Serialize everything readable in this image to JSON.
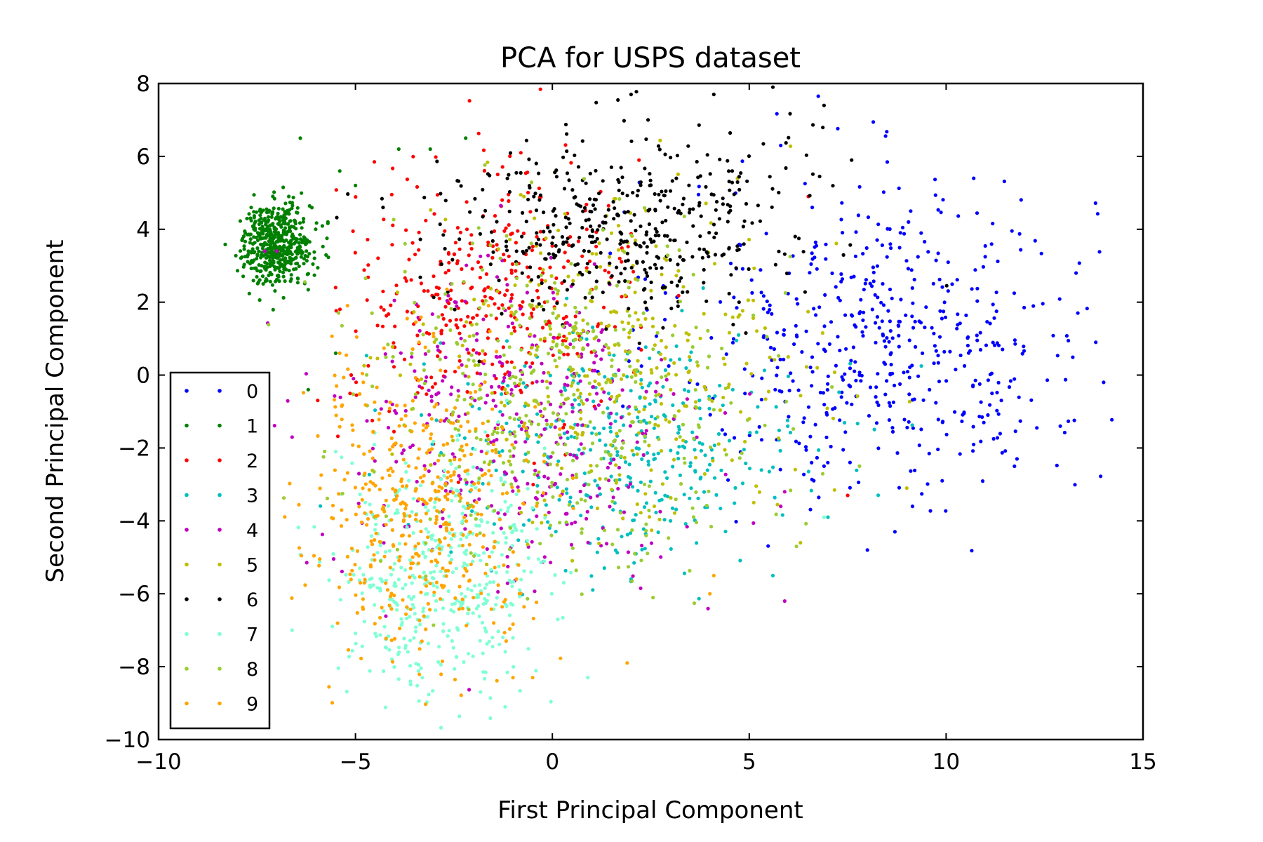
{
  "chart_data": {
    "type": "scatter",
    "title": "PCA for USPS dataset",
    "xlabel": "First Principal Component",
    "ylabel": "Second Principal Component",
    "xlim": [
      -10,
      15
    ],
    "ylim": [
      -10,
      8
    ],
    "xticks": [
      -10,
      -5,
      0,
      5,
      10,
      15
    ],
    "xtick_labels": [
      "−10",
      "−5",
      "0",
      "5",
      "10",
      "15"
    ],
    "yticks": [
      -10,
      -8,
      -6,
      -4,
      -2,
      0,
      2,
      4,
      6,
      8
    ],
    "ytick_labels": [
      "−10",
      "−8",
      "−6",
      "−4",
      "−2",
      "0",
      "2",
      "4",
      "6",
      "8"
    ],
    "grid": false,
    "legend_position": "lower-left",
    "series": [
      {
        "name": "0",
        "color": "#0000ff",
        "center": [
          8.5,
          1.0
        ],
        "spread": [
          2.6,
          2.2
        ],
        "count": 520,
        "points": [
          [
            5.8,
            6.3
          ],
          [
            10.7,
            5.4
          ],
          [
            13.8,
            0.9
          ],
          [
            14.0,
            -0.2
          ],
          [
            12.9,
            -1.4
          ],
          [
            11.8,
            -2.3
          ],
          [
            8.0,
            -4.8
          ],
          [
            8.7,
            -4.3
          ],
          [
            9.9,
            -2.9
          ],
          [
            13.3,
            2.8
          ],
          [
            9.1,
            4.5
          ],
          [
            6.6,
            4.6
          ]
        ]
      },
      {
        "name": "1",
        "color": "#008000",
        "center": [
          -7.0,
          3.6
        ],
        "spread": [
          0.45,
          0.55
        ],
        "count": 520,
        "points": [
          [
            -6.4,
            6.5
          ],
          [
            -5.4,
            5.6
          ],
          [
            -5.0,
            5.2
          ],
          [
            -3.9,
            6.2
          ],
          [
            -3.1,
            6.2
          ],
          [
            -2.2,
            6.5
          ],
          [
            -6.2,
            -0.4
          ],
          [
            -5.5,
            0.6
          ],
          [
            -7.8,
            3.9
          ],
          [
            -5.7,
            4.2
          ]
        ]
      },
      {
        "name": "2",
        "color": "#ff0000",
        "center": [
          -1.5,
          2.2
        ],
        "spread": [
          1.8,
          1.7
        ],
        "count": 360,
        "points": [
          [
            -0.8,
            6.1
          ],
          [
            6.5,
            4.9
          ],
          [
            7.5,
            -3.3
          ],
          [
            2.2,
            5.9
          ]
        ]
      },
      {
        "name": "3",
        "color": "#00bfbf",
        "center": [
          1.8,
          -2.0
        ],
        "spread": [
          2.4,
          1.6
        ],
        "count": 380,
        "points": [
          [
            5.6,
            -5.5
          ],
          [
            7.0,
            -3.9
          ],
          [
            3.0,
            -4.0
          ]
        ]
      },
      {
        "name": "4",
        "color": "#bf00bf",
        "center": [
          -1.0,
          -1.5
        ],
        "spread": [
          2.3,
          2.2
        ],
        "count": 380,
        "points": [
          [
            5.9,
            -3.2
          ],
          [
            5.8,
            -3.6
          ],
          [
            5.9,
            -6.2
          ],
          [
            -7.3,
            3.4
          ],
          [
            -7.0,
            3.4
          ]
        ]
      },
      {
        "name": "5",
        "color": "#bfbf00",
        "center": [
          1.5,
          0.2
        ],
        "spread": [
          2.4,
          2.2
        ],
        "count": 380,
        "points": [
          [
            9.0,
            -3.1
          ],
          [
            4.7,
            5.4
          ],
          [
            6.3,
            -4.6
          ]
        ]
      },
      {
        "name": "6",
        "color": "#000000",
        "center": [
          1.8,
          4.2
        ],
        "spread": [
          2.2,
          1.3
        ],
        "count": 440,
        "points": [
          [
            2.0,
            7.7
          ],
          [
            4.1,
            7.7
          ],
          [
            5.6,
            7.9
          ],
          [
            6.9,
            7.4
          ],
          [
            7.6,
            5.9
          ],
          [
            -4.3,
            4.6
          ]
        ]
      },
      {
        "name": "7",
        "color": "#7fffd4",
        "center": [
          -2.8,
          -5.5
        ],
        "spread": [
          1.3,
          1.6
        ],
        "count": 440,
        "points": [
          [
            -3.3,
            -8.3
          ],
          [
            -1.2,
            -9.1
          ],
          [
            0.9,
            -8.3
          ],
          [
            -5.5,
            -2.1
          ],
          [
            6.9,
            -3.9
          ]
        ]
      },
      {
        "name": "8",
        "color": "#9acd32",
        "center": [
          0.2,
          -0.6
        ],
        "spread": [
          2.6,
          2.3
        ],
        "count": 400,
        "points": [
          [
            6.2,
            -4.7
          ],
          [
            7.8,
            -2.5
          ]
        ]
      },
      {
        "name": "9",
        "color": "#ffa500",
        "center": [
          -3.3,
          -3.6
        ],
        "spread": [
          1.5,
          2.0
        ],
        "count": 440,
        "points": [
          [
            -0.5,
            -8.3
          ],
          [
            -1.0,
            -8.3
          ],
          [
            4.1,
            -5.5
          ],
          [
            4.0,
            -6.0
          ],
          [
            1.9,
            -7.9
          ],
          [
            -4.8,
            -0.2
          ],
          [
            -5.4,
            0.6
          ]
        ]
      }
    ]
  }
}
